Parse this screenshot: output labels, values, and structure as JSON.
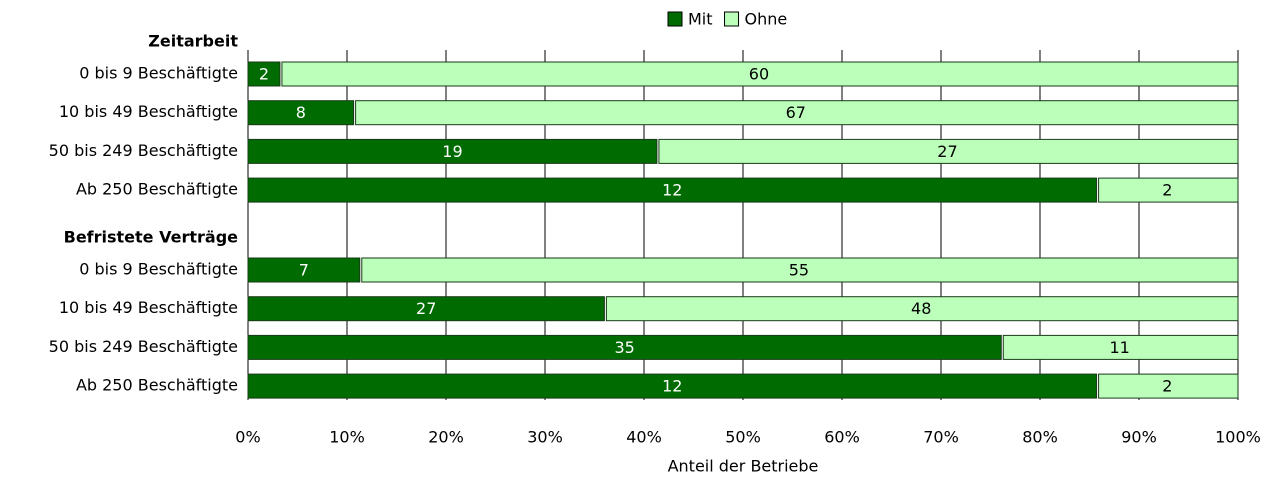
{
  "chart_data": {
    "type": "bar",
    "orientation": "horizontal",
    "stack": "percent",
    "xlabel": "Anteil der Betriebe",
    "xlim": [
      0,
      100
    ],
    "xticks": [
      {
        "value": 0,
        "label": "0%"
      },
      {
        "value": 10,
        "label": "10%"
      },
      {
        "value": 20,
        "label": "20%"
      },
      {
        "value": 30,
        "label": "30%"
      },
      {
        "value": 40,
        "label": "40%"
      },
      {
        "value": 50,
        "label": "50%"
      },
      {
        "value": 60,
        "label": "60%"
      },
      {
        "value": 70,
        "label": "70%"
      },
      {
        "value": 80,
        "label": "80%"
      },
      {
        "value": 90,
        "label": "90%"
      },
      {
        "value": 100,
        "label": "100%"
      }
    ],
    "grid": true,
    "legend": "top",
    "groups": [
      {
        "name": "Zeitarbeit",
        "categories": [
          "0 bis 9 Beschäftigte",
          "10 bis 49 Beschäftigte",
          "50 bis 249 Beschäftigte",
          "Ab 250 Beschäftigte"
        ],
        "series": [
          {
            "name": "Mit",
            "color": "#006b00",
            "values": [
              2,
              8,
              19,
              12
            ]
          },
          {
            "name": "Ohne",
            "color": "#bbffbb",
            "values": [
              60,
              67,
              27,
              2
            ]
          }
        ]
      },
      {
        "name": "Befristete Verträge",
        "categories": [
          "0 bis 9 Beschäftigte",
          "10 bis 49 Beschäftigte",
          "50 bis 249 Beschäftigte",
          "Ab 250 Beschäftigte"
        ],
        "series": [
          {
            "name": "Mit",
            "color": "#006b00",
            "values": [
              7,
              27,
              35,
              12
            ]
          },
          {
            "name": "Ohne",
            "color": "#bbffbb",
            "values": [
              55,
              48,
              11,
              2
            ]
          }
        ]
      }
    ]
  }
}
